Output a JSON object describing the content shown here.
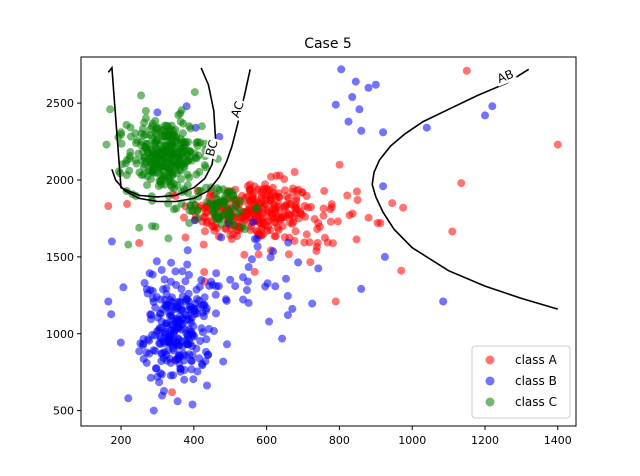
{
  "chart_data": {
    "type": "scatter",
    "title": "Case 5",
    "xlabel": "",
    "ylabel": "",
    "xlim": [
      90,
      1450
    ],
    "ylim": [
      400,
      2800
    ],
    "xticks": [
      200,
      400,
      600,
      800,
      1000,
      1200,
      1400
    ],
    "yticks": [
      500,
      1000,
      1500,
      2000,
      2500
    ],
    "xtick_labels": [
      "200",
      "400",
      "600",
      "800",
      "1000",
      "1200",
      "1400"
    ],
    "ytick_labels": [
      "500",
      "1000",
      "1500",
      "2000",
      "2500"
    ],
    "legend_position": "lower-right",
    "series": [
      {
        "name": "class A",
        "color": "#ff0000",
        "clusters": [
          {
            "cx": 560,
            "cy": 1800,
            "sx": 85,
            "sy": 95,
            "n": 240
          },
          {
            "cx": 650,
            "cy": 1750,
            "sx": 110,
            "sy": 150,
            "n": 80
          }
        ],
        "points": [
          [
            1400,
            2230
          ],
          [
            1150,
            2710
          ],
          [
            1135,
            1980
          ],
          [
            1110,
            1665
          ],
          [
            970,
            1410
          ],
          [
            975,
            1820
          ],
          [
            945,
            1850
          ],
          [
            905,
            1720
          ],
          [
            850,
            1870
          ],
          [
            790,
            1210
          ],
          [
            775,
            1810
          ],
          [
            760,
            1625
          ],
          [
            740,
            1590
          ],
          [
            430,
            1340
          ],
          [
            350,
            830
          ],
          [
            340,
            620
          ],
          [
            250,
            1590
          ],
          [
            165,
            1830
          ]
        ]
      },
      {
        "name": "class B",
        "color": "#0000ff",
        "clusters": [
          {
            "cx": 355,
            "cy": 1000,
            "sx": 45,
            "sy": 160,
            "n": 230
          },
          {
            "cx": 470,
            "cy": 1320,
            "sx": 130,
            "sy": 200,
            "n": 70
          }
        ],
        "points": [
          [
            805,
            2720
          ],
          [
            845,
            2640
          ],
          [
            880,
            2600
          ],
          [
            900,
            2620
          ],
          [
            835,
            2540
          ],
          [
            855,
            2460
          ],
          [
            790,
            2490
          ],
          [
            825,
            2380
          ],
          [
            860,
            2320
          ],
          [
            920,
            2310
          ],
          [
            1040,
            2340
          ],
          [
            1200,
            2420
          ],
          [
            1220,
            2480
          ],
          [
            920,
            1960
          ],
          [
            925,
            1500
          ],
          [
            1085,
            1210
          ],
          [
            300,
            2440
          ],
          [
            380,
            2480
          ],
          [
            470,
            2280
          ],
          [
            405,
            2340
          ],
          [
            165,
            1210
          ],
          [
            175,
            1600
          ],
          [
            220,
            580
          ],
          [
            290,
            500
          ],
          [
            300,
            720
          ]
        ]
      },
      {
        "name": "class C",
        "color": "#008000",
        "clusters": [
          {
            "cx": 320,
            "cy": 2160,
            "sx": 50,
            "sy": 120,
            "n": 300
          },
          {
            "cx": 470,
            "cy": 1830,
            "sx": 45,
            "sy": 70,
            "n": 70
          }
        ],
        "points": [
          [
            170,
            2460
          ],
          [
            160,
            2230
          ],
          [
            255,
            2550
          ],
          [
            250,
            1690
          ],
          [
            285,
            1700
          ],
          [
            220,
            1580
          ],
          [
            330,
            1620
          ],
          [
            410,
            1750
          ],
          [
            540,
            1680
          ],
          [
            200,
            2310
          ]
        ]
      }
    ],
    "boundaries": [
      {
        "label": "AB",
        "x": [
          1400,
          1300,
          1200,
          1100,
          1000,
          950,
          920,
          900,
          890,
          895,
          910,
          940,
          980,
          1030,
          1100,
          1180,
          1260,
          1320
        ],
        "y": [
          1160,
          1230,
          1310,
          1410,
          1560,
          1680,
          1790,
          1890,
          1970,
          2050,
          2130,
          2220,
          2300,
          2380,
          2460,
          2550,
          2630,
          2720
        ]
      },
      {
        "label": "AC",
        "x": [
          555,
          540,
          520,
          505,
          490,
          470,
          440,
          400,
          350,
          300,
          250,
          210,
          185,
          175
        ],
        "y": [
          2720,
          2560,
          2360,
          2220,
          2120,
          2020,
          1930,
          1880,
          1860,
          1860,
          1880,
          1930,
          2000,
          2070
        ]
      },
      {
        "label": "BC",
        "x": [
          165,
          175,
          200,
          250,
          300,
          350,
          400,
          430,
          450,
          460,
          455,
          440,
          420
        ],
        "y": [
          2700,
          2730,
          1950,
          1900,
          1890,
          1900,
          1950,
          2010,
          2100,
          2250,
          2450,
          2620,
          2730
        ]
      }
    ]
  }
}
